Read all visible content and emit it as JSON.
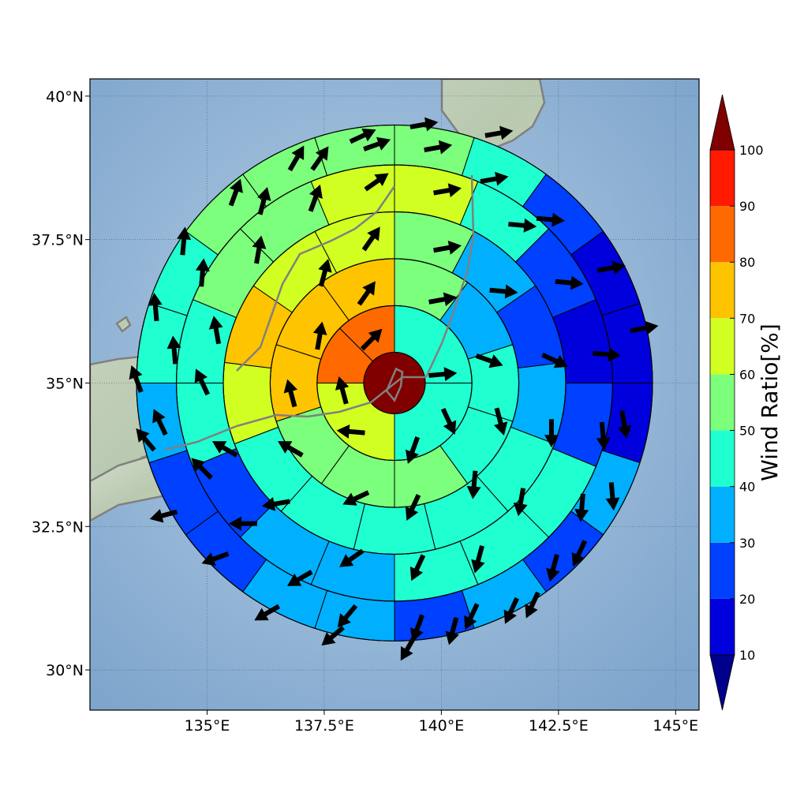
{
  "map": {
    "lon_range": [
      132.5,
      145.5
    ],
    "lat_range": [
      29.3,
      40.3
    ],
    "center": {
      "lon": 139.0,
      "lat": 35.0
    },
    "radius_deg": 5.5,
    "ring_edges_deg": [
      0.65,
      1.15,
      1.65,
      2.15,
      2.65,
      3.15,
      3.65,
      4.15,
      4.65,
      5.15,
      5.5
    ],
    "ring_bounds_deg": [
      0.65,
      1.65,
      2.65,
      3.65,
      4.65,
      5.5
    ],
    "x_ticks": [
      {
        "value": 135,
        "label": "135°E"
      },
      {
        "value": 137.5,
        "label": "137.5°E"
      },
      {
        "value": 140,
        "label": "140°E"
      },
      {
        "value": 142.5,
        "label": "142.5°E"
      },
      {
        "value": 145,
        "label": "145°E"
      }
    ],
    "y_ticks": [
      {
        "value": 40,
        "label": "40°N"
      },
      {
        "value": 37.5,
        "label": "37.5°N"
      },
      {
        "value": 35,
        "label": "35°N"
      },
      {
        "value": 32.5,
        "label": "32.5°N"
      },
      {
        "value": 30,
        "label": "30°N"
      }
    ],
    "grid": true,
    "basemap": "shaded-relief ocean with grey coastlines"
  },
  "colorbar": {
    "title": "Wind Ratio[%]",
    "bounds": [
      10,
      20,
      30,
      40,
      50,
      60,
      70,
      80,
      90,
      100
    ],
    "labels": [
      "10",
      "20",
      "30",
      "40",
      "50",
      "60",
      "70",
      "80",
      "90",
      "100"
    ],
    "colors": [
      "#0000dd",
      "#0040ff",
      "#00b0ff",
      "#20ffd0",
      "#7cff7c",
      "#d2ff22",
      "#ffc400",
      "#ff6a00",
      "#ff1a00"
    ],
    "under_color": "#00008b",
    "over_color": "#800000",
    "extend": "both"
  },
  "chart_data": {
    "type": "polar-sector-heatmap",
    "quantity": "Wind Ratio[%]",
    "center_value": 100,
    "sector_angle_convention": "compass degrees, clockwise from north",
    "rings": [
      {
        "ring": 1,
        "r_inner": 0.65,
        "r_outer": 1.65,
        "sectors": [
          {
            "from": 0,
            "to": 90,
            "value": 45
          },
          {
            "from": 90,
            "to": 180,
            "value": 45
          },
          {
            "from": 180,
            "to": 270,
            "value": 65
          },
          {
            "from": 270,
            "to": 315,
            "value": 85
          },
          {
            "from": 315,
            "to": 360,
            "value": 85
          }
        ]
      },
      {
        "ring": 2,
        "r_inner": 1.65,
        "r_outer": 2.65,
        "sectors": [
          {
            "from": 0,
            "to": 36,
            "value": 55
          },
          {
            "from": 36,
            "to": 72,
            "value": 35
          },
          {
            "from": 72,
            "to": 108,
            "value": 45
          },
          {
            "from": 108,
            "to": 144,
            "value": 45
          },
          {
            "from": 144,
            "to": 180,
            "value": 55
          },
          {
            "from": 180,
            "to": 216,
            "value": 55
          },
          {
            "from": 216,
            "to": 252,
            "value": 55
          },
          {
            "from": 252,
            "to": 288,
            "value": 75
          },
          {
            "from": 288,
            "to": 324,
            "value": 75
          },
          {
            "from": 324,
            "to": 360,
            "value": 75
          }
        ]
      },
      {
        "ring": 3,
        "r_inner": 2.65,
        "r_outer": 3.65,
        "sectors": [
          {
            "from": 0,
            "to": 27.7,
            "value": 55
          },
          {
            "from": 27.7,
            "to": 55.4,
            "value": 35
          },
          {
            "from": 55.4,
            "to": 83.1,
            "value": 25
          },
          {
            "from": 83.1,
            "to": 110.8,
            "value": 35
          },
          {
            "from": 110.8,
            "to": 138.5,
            "value": 45
          },
          {
            "from": 138.5,
            "to": 166.2,
            "value": 45
          },
          {
            "from": 166.2,
            "to": 193.8,
            "value": 45
          },
          {
            "from": 193.8,
            "to": 221.5,
            "value": 45
          },
          {
            "from": 221.5,
            "to": 249.2,
            "value": 45
          },
          {
            "from": 249.2,
            "to": 276.9,
            "value": 65
          },
          {
            "from": 276.9,
            "to": 304.6,
            "value": 75
          },
          {
            "from": 304.6,
            "to": 332.3,
            "value": 65
          },
          {
            "from": 332.3,
            "to": 360,
            "value": 65
          }
        ]
      },
      {
        "ring": 4,
        "r_inner": 3.65,
        "r_outer": 4.65,
        "sectors": [
          {
            "from": 0,
            "to": 22.5,
            "value": 65
          },
          {
            "from": 22.5,
            "to": 45,
            "value": 45
          },
          {
            "from": 45,
            "to": 67.5,
            "value": 25
          },
          {
            "from": 67.5,
            "to": 90,
            "value": 15
          },
          {
            "from": 90,
            "to": 112.5,
            "value": 25
          },
          {
            "from": 112.5,
            "to": 135,
            "value": 45
          },
          {
            "from": 135,
            "to": 157.5,
            "value": 45
          },
          {
            "from": 157.5,
            "to": 180,
            "value": 45
          },
          {
            "from": 180,
            "to": 202.5,
            "value": 35
          },
          {
            "from": 202.5,
            "to": 225,
            "value": 35
          },
          {
            "from": 225,
            "to": 247.5,
            "value": 25
          },
          {
            "from": 247.5,
            "to": 270,
            "value": 45
          },
          {
            "from": 270,
            "to": 292.5,
            "value": 45
          },
          {
            "from": 292.5,
            "to": 315,
            "value": 55
          },
          {
            "from": 315,
            "to": 337.5,
            "value": 55
          },
          {
            "from": 337.5,
            "to": 360,
            "value": 65
          }
        ]
      },
      {
        "ring": 5,
        "r_inner": 4.65,
        "r_outer": 5.5,
        "sectors": [
          {
            "from": 0,
            "to": 18,
            "value": 55
          },
          {
            "from": 18,
            "to": 36,
            "value": 45
          },
          {
            "from": 36,
            "to": 54,
            "value": 25
          },
          {
            "from": 54,
            "to": 72,
            "value": 15
          },
          {
            "from": 72,
            "to": 90,
            "value": 15
          },
          {
            "from": 90,
            "to": 108,
            "value": 15
          },
          {
            "from": 108,
            "to": 126,
            "value": 35
          },
          {
            "from": 126,
            "to": 144,
            "value": 25
          },
          {
            "from": 144,
            "to": 162,
            "value": 35
          },
          {
            "from": 162,
            "to": 180,
            "value": 25
          },
          {
            "from": 180,
            "to": 198,
            "value": 35
          },
          {
            "from": 198,
            "to": 216,
            "value": 35
          },
          {
            "from": 216,
            "to": 234,
            "value": 25
          },
          {
            "from": 234,
            "to": 252,
            "value": 25
          },
          {
            "from": 252,
            "to": 270,
            "value": 35
          },
          {
            "from": 270,
            "to": 288,
            "value": 45
          },
          {
            "from": 288,
            "to": 306,
            "value": 45
          },
          {
            "from": 306,
            "to": 324,
            "value": 55
          },
          {
            "from": 324,
            "to": 342,
            "value": 55
          },
          {
            "from": 342,
            "to": 360,
            "value": 55
          }
        ]
      }
    ],
    "wind_vectors": [
      {
        "lon": 138.5,
        "lat": 35.75,
        "dir": 45
      },
      {
        "lon": 140.0,
        "lat": 35.15,
        "dir": 85
      },
      {
        "lon": 140.15,
        "lat": 34.35,
        "dir": 155
      },
      {
        "lon": 139.4,
        "lat": 33.85,
        "dir": 200
      },
      {
        "lon": 138.1,
        "lat": 34.15,
        "dir": 275
      },
      {
        "lon": 137.9,
        "lat": 34.85,
        "dir": 345
      },
      {
        "lon": 138.4,
        "lat": 36.55,
        "dir": 35
      },
      {
        "lon": 140.0,
        "lat": 36.45,
        "dir": 80
      },
      {
        "lon": 141.0,
        "lat": 35.4,
        "dir": 110
      },
      {
        "lon": 141.25,
        "lat": 34.35,
        "dir": 165
      },
      {
        "lon": 140.7,
        "lat": 33.25,
        "dir": 185
      },
      {
        "lon": 139.4,
        "lat": 32.85,
        "dir": 205
      },
      {
        "lon": 138.2,
        "lat": 33.0,
        "dir": 245
      },
      {
        "lon": 136.8,
        "lat": 33.85,
        "dir": 300
      },
      {
        "lon": 136.8,
        "lat": 34.8,
        "dir": 345
      },
      {
        "lon": 137.4,
        "lat": 35.8,
        "dir": 10
      },
      {
        "lon": 137.5,
        "lat": 36.9,
        "dir": 15
      },
      {
        "lon": 138.5,
        "lat": 37.5,
        "dir": 35
      },
      {
        "lon": 140.1,
        "lat": 37.35,
        "dir": 80
      },
      {
        "lon": 141.3,
        "lat": 36.6,
        "dir": 95
      },
      {
        "lon": 142.4,
        "lat": 35.4,
        "dir": 115
      },
      {
        "lon": 142.35,
        "lat": 34.15,
        "dir": 180
      },
      {
        "lon": 141.7,
        "lat": 32.95,
        "dir": 190
      },
      {
        "lon": 140.8,
        "lat": 31.95,
        "dir": 195
      },
      {
        "lon": 139.5,
        "lat": 31.8,
        "dir": 205
      },
      {
        "lon": 138.1,
        "lat": 31.95,
        "dir": 235
      },
      {
        "lon": 136.5,
        "lat": 32.9,
        "dir": 260
      },
      {
        "lon": 135.4,
        "lat": 33.85,
        "dir": 300
      },
      {
        "lon": 134.9,
        "lat": 35.0,
        "dir": 335
      },
      {
        "lon": 135.2,
        "lat": 35.9,
        "dir": 350
      },
      {
        "lon": 136.1,
        "lat": 37.3,
        "dir": 10
      },
      {
        "lon": 137.3,
        "lat": 38.2,
        "dir": 20
      },
      {
        "lon": 138.6,
        "lat": 38.5,
        "dir": 55
      },
      {
        "lon": 140.1,
        "lat": 38.35,
        "dir": 80
      },
      {
        "lon": 141.7,
        "lat": 37.75,
        "dir": 95
      },
      {
        "lon": 142.7,
        "lat": 36.75,
        "dir": 95
      },
      {
        "lon": 143.5,
        "lat": 35.5,
        "dir": 95
      },
      {
        "lon": 143.45,
        "lat": 34.1,
        "dir": 175
      },
      {
        "lon": 143.0,
        "lat": 32.85,
        "dir": 185
      },
      {
        "lon": 142.4,
        "lat": 31.8,
        "dir": 195
      },
      {
        "lon": 141.5,
        "lat": 31.05,
        "dir": 205
      },
      {
        "lon": 140.25,
        "lat": 30.7,
        "dir": 195
      },
      {
        "lon": 139.5,
        "lat": 30.75,
        "dir": 200
      },
      {
        "lon": 138.0,
        "lat": 30.95,
        "dir": 220
      },
      {
        "lon": 137.0,
        "lat": 31.6,
        "dir": 240
      },
      {
        "lon": 135.8,
        "lat": 32.55,
        "dir": 270
      },
      {
        "lon": 134.9,
        "lat": 33.5,
        "dir": 315
      },
      {
        "lon": 134.0,
        "lat": 34.3,
        "dir": 335
      },
      {
        "lon": 134.3,
        "lat": 35.55,
        "dir": 355
      },
      {
        "lon": 134.9,
        "lat": 36.9,
        "dir": 5
      },
      {
        "lon": 136.2,
        "lat": 38.15,
        "dir": 15
      },
      {
        "lon": 137.4,
        "lat": 38.9,
        "dir": 35
      },
      {
        "lon": 138.6,
        "lat": 39.15,
        "dir": 70
      },
      {
        "lon": 139.9,
        "lat": 39.1,
        "dir": 80
      },
      {
        "lon": 141.1,
        "lat": 38.55,
        "dir": 80
      },
      {
        "lon": 142.3,
        "lat": 37.85,
        "dir": 95
      },
      {
        "lon": 143.6,
        "lat": 37.0,
        "dir": 80
      },
      {
        "lon": 144.3,
        "lat": 35.95,
        "dir": 80
      },
      {
        "lon": 143.9,
        "lat": 34.3,
        "dir": 170
      },
      {
        "lon": 143.65,
        "lat": 33.05,
        "dir": 175
      },
      {
        "lon": 142.95,
        "lat": 32.05,
        "dir": 205
      },
      {
        "lon": 141.95,
        "lat": 31.15,
        "dir": 205
      },
      {
        "lon": 140.65,
        "lat": 30.95,
        "dir": 205
      },
      {
        "lon": 139.3,
        "lat": 30.4,
        "dir": 210
      },
      {
        "lon": 137.7,
        "lat": 30.6,
        "dir": 230
      },
      {
        "lon": 136.3,
        "lat": 31.0,
        "dir": 240
      },
      {
        "lon": 135.2,
        "lat": 31.95,
        "dir": 250
      },
      {
        "lon": 134.1,
        "lat": 32.7,
        "dir": 255
      },
      {
        "lon": 133.7,
        "lat": 34.0,
        "dir": 320
      },
      {
        "lon": 133.5,
        "lat": 35.05,
        "dir": 340
      },
      {
        "lon": 133.9,
        "lat": 36.3,
        "dir": 355
      },
      {
        "lon": 134.5,
        "lat": 37.45,
        "dir": 5
      },
      {
        "lon": 135.6,
        "lat": 38.3,
        "dir": 20
      },
      {
        "lon": 136.9,
        "lat": 38.9,
        "dir": 30
      },
      {
        "lon": 138.3,
        "lat": 39.3,
        "dir": 65
      },
      {
        "lon": 139.6,
        "lat": 39.5,
        "dir": 80
      },
      {
        "lon": 141.2,
        "lat": 39.35,
        "dir": 80
      }
    ]
  }
}
